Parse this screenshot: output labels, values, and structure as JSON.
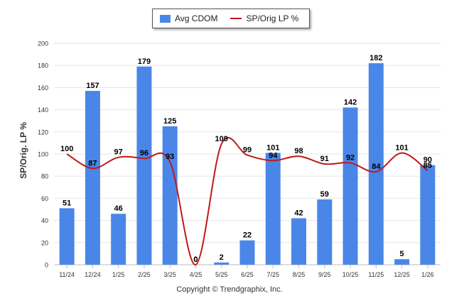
{
  "chart_data": {
    "type": "bar",
    "ylabel": "SP/Orig. LP %",
    "ylim": [
      0,
      200
    ],
    "yticks": [
      0,
      20,
      40,
      60,
      80,
      100,
      120,
      140,
      160,
      180,
      200
    ],
    "categories": [
      "11/24",
      "12/24",
      "1/25",
      "2/25",
      "3/25",
      "4/25",
      "5/25",
      "6/25",
      "7/25",
      "8/25",
      "9/25",
      "10/25",
      "11/25",
      "12/25",
      "1/26"
    ],
    "series": [
      {
        "name": "Avg CDOM",
        "type": "bar",
        "color": "#4a86e8",
        "values": [
          51,
          157,
          46,
          179,
          125,
          0,
          2,
          22,
          101,
          42,
          59,
          142,
          182,
          5,
          90
        ]
      },
      {
        "name": "SP/Orig LP %",
        "type": "line",
        "color": "#c0181b",
        "values": [
          100,
          87,
          97,
          96,
          93,
          0,
          109,
          99,
          94,
          98,
          91,
          92,
          84,
          101,
          85
        ]
      }
    ]
  },
  "footer": {
    "copyright": "Copyright © Trendgraphix, Inc."
  }
}
